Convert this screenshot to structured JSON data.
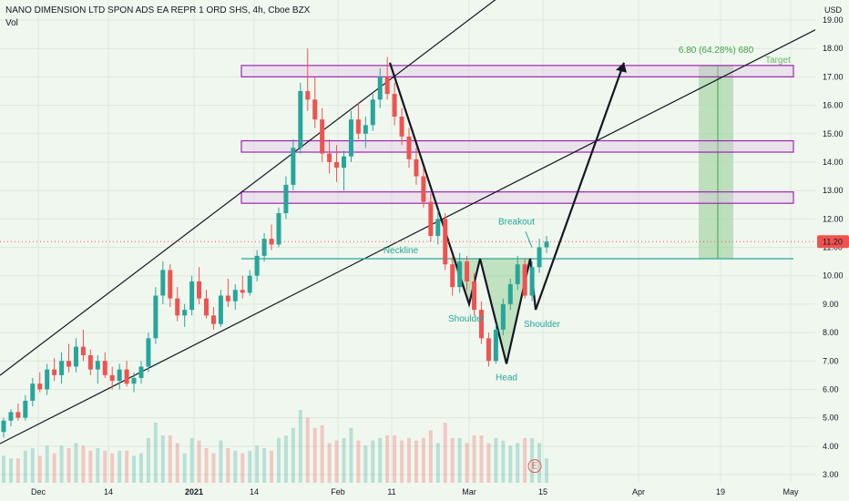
{
  "header": {
    "title": "NANO DIMENSION LTD SPON ADS EA REPR 1 ORD SHS, 4h, Cboe BZX",
    "vol_label": "Vol"
  },
  "colors": {
    "up": "#26a69a",
    "down": "#ef5350",
    "zone_border": "#9c27b0",
    "neckline": "#26a69a",
    "target_fill": "#a5d6a7",
    "price_badge": "#ef5350",
    "pattern_fill": "#66bb6a"
  },
  "chart_data": {
    "type": "candlestick",
    "y_axis": {
      "unit": "USD",
      "ylim": [
        2.8,
        19.6
      ],
      "ticks": [
        "3.00",
        "4.00",
        "5.00",
        "6.00",
        "7.00",
        "8.00",
        "9.00",
        "10.00",
        "11.00",
        "12.00",
        "13.00",
        "14.00",
        "15.00",
        "16.00",
        "17.00",
        "18.00",
        "19.00"
      ]
    },
    "x_axis": {
      "ticks": [
        "Dec",
        "14",
        "2021",
        "14",
        "Feb",
        "11",
        "Mar",
        "15",
        "Apr",
        "19",
        "May"
      ]
    },
    "last_price": "11.20",
    "last_price_value": 11.2,
    "resistance_zones": [
      {
        "low": 17.0,
        "high": 17.4
      },
      {
        "low": 14.35,
        "high": 14.75
      },
      {
        "low": 12.55,
        "high": 12.95
      }
    ],
    "neckline": {
      "label": "Neckline",
      "value": 10.6
    },
    "pattern_labels": {
      "left_shoulder": "Shoulder",
      "head": "Head",
      "right_shoulder": "Shoulder",
      "breakout": "Breakout"
    },
    "pattern_points": [
      {
        "date": "2021-02-10",
        "value": 17.5
      },
      {
        "date": "2021-02-25",
        "value": 9.0
      },
      {
        "date": "2021-03-01",
        "value": 10.6
      },
      {
        "date": "2021-03-08",
        "value": 6.9
      },
      {
        "date": "2021-03-12",
        "value": 10.6
      },
      {
        "date": "2021-03-13",
        "value": 8.8
      },
      {
        "date": "2021-03-30",
        "value": 17.5
      }
    ],
    "target": {
      "label": "Target",
      "text": "6.80 (64.28%) 680",
      "from": 10.6,
      "to": 17.4
    },
    "event_marker": "E",
    "candles": [
      [
        4.5,
        5.0,
        4.3,
        4.9
      ],
      [
        4.9,
        5.3,
        4.7,
        5.2
      ],
      [
        5.2,
        5.5,
        4.9,
        5.0
      ],
      [
        5.0,
        5.8,
        4.9,
        5.6
      ],
      [
        5.6,
        6.4,
        5.4,
        6.2
      ],
      [
        6.2,
        6.6,
        5.9,
        6.0
      ],
      [
        6.0,
        6.9,
        5.8,
        6.7
      ],
      [
        6.7,
        7.1,
        6.3,
        6.5
      ],
      [
        6.5,
        7.3,
        6.2,
        7.0
      ],
      [
        7.0,
        7.6,
        6.6,
        6.8
      ],
      [
        6.8,
        7.8,
        6.6,
        7.5
      ],
      [
        7.5,
        8.1,
        7.0,
        7.2
      ],
      [
        7.2,
        7.4,
        6.5,
        6.7
      ],
      [
        6.7,
        7.2,
        6.2,
        7.0
      ],
      [
        7.0,
        7.3,
        6.4,
        6.5
      ],
      [
        6.5,
        6.8,
        6.0,
        6.3
      ],
      [
        6.3,
        6.9,
        6.0,
        6.7
      ],
      [
        6.7,
        7.0,
        6.1,
        6.2
      ],
      [
        6.2,
        6.6,
        5.9,
        6.4
      ],
      [
        6.4,
        7.0,
        6.2,
        6.8
      ],
      [
        6.8,
        8.0,
        6.6,
        7.8
      ],
      [
        7.8,
        9.6,
        7.6,
        9.3
      ],
      [
        9.3,
        10.5,
        9.0,
        10.2
      ],
      [
        10.2,
        10.4,
        8.9,
        9.2
      ],
      [
        9.2,
        9.6,
        8.4,
        8.6
      ],
      [
        8.6,
        9.0,
        8.2,
        8.8
      ],
      [
        8.8,
        10.0,
        8.6,
        9.8
      ],
      [
        9.8,
        10.3,
        9.0,
        9.2
      ],
      [
        9.2,
        9.5,
        8.5,
        8.6
      ],
      [
        8.6,
        8.9,
        8.1,
        8.3
      ],
      [
        8.3,
        9.5,
        8.2,
        9.3
      ],
      [
        9.3,
        9.9,
        8.9,
        9.1
      ],
      [
        9.1,
        9.7,
        8.8,
        9.5
      ],
      [
        9.5,
        10.0,
        9.2,
        9.4
      ],
      [
        9.4,
        10.2,
        9.3,
        10.0
      ],
      [
        10.0,
        10.9,
        9.8,
        10.7
      ],
      [
        10.7,
        11.5,
        10.5,
        11.3
      ],
      [
        11.3,
        11.8,
        10.9,
        11.1
      ],
      [
        11.1,
        12.4,
        11.0,
        12.2
      ],
      [
        12.2,
        13.5,
        12.0,
        13.2
      ],
      [
        13.2,
        14.8,
        13.0,
        14.5
      ],
      [
        14.5,
        16.8,
        14.3,
        16.5
      ],
      [
        16.5,
        18.0,
        15.8,
        16.2
      ],
      [
        16.2,
        17.0,
        15.2,
        15.5
      ],
      [
        15.5,
        15.9,
        14.0,
        14.3
      ],
      [
        14.3,
        14.8,
        13.6,
        14.0
      ],
      [
        14.0,
        14.6,
        13.3,
        13.8
      ],
      [
        13.8,
        14.4,
        13.0,
        14.2
      ],
      [
        14.2,
        15.8,
        14.0,
        15.5
      ],
      [
        15.5,
        16.1,
        14.8,
        15.0
      ],
      [
        15.0,
        15.6,
        14.5,
        15.3
      ],
      [
        15.3,
        16.4,
        15.1,
        16.2
      ],
      [
        16.2,
        17.3,
        15.9,
        17.0
      ],
      [
        17.0,
        17.7,
        16.2,
        16.4
      ],
      [
        16.4,
        16.8,
        15.3,
        15.6
      ],
      [
        15.6,
        15.9,
        14.6,
        14.9
      ],
      [
        14.9,
        15.2,
        13.8,
        14.1
      ],
      [
        14.1,
        14.5,
        13.2,
        13.5
      ],
      [
        13.5,
        13.8,
        12.4,
        12.6
      ],
      [
        12.6,
        12.9,
        11.2,
        11.4
      ],
      [
        11.4,
        12.3,
        11.1,
        12.0
      ],
      [
        12.0,
        12.2,
        10.2,
        10.4
      ],
      [
        10.4,
        10.7,
        9.3,
        9.6
      ],
      [
        9.6,
        10.8,
        9.4,
        10.5
      ],
      [
        10.5,
        10.7,
        9.5,
        9.8
      ],
      [
        9.8,
        10.1,
        8.6,
        8.8
      ],
      [
        8.8,
        9.1,
        7.6,
        7.8
      ],
      [
        7.8,
        8.0,
        6.8,
        7.0
      ],
      [
        7.0,
        8.3,
        6.9,
        8.1
      ],
      [
        8.1,
        9.2,
        7.9,
        9.0
      ],
      [
        9.0,
        9.9,
        8.8,
        9.7
      ],
      [
        9.7,
        10.7,
        9.5,
        10.4
      ],
      [
        10.4,
        10.6,
        9.2,
        9.3
      ],
      [
        9.3,
        10.5,
        9.1,
        10.3
      ],
      [
        10.3,
        11.3,
        10.1,
        11.0
      ],
      [
        11.0,
        11.4,
        10.8,
        11.2
      ]
    ]
  }
}
